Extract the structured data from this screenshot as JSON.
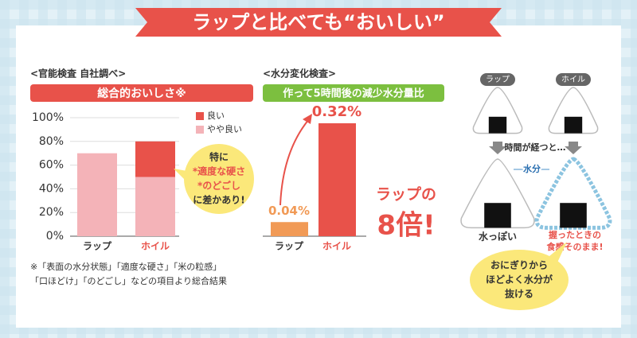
{
  "title": "ラップと比べても“おいしい”",
  "chart_data": [
    {
      "type": "stacked-bar",
      "header": "<官能検査 自社調べ>",
      "subtitle": "総合的おいしさ※",
      "categories": [
        "ラップ",
        "ホイル"
      ],
      "series": [
        {
          "name": "やや良い",
          "color": "#f4b3b8",
          "values": [
            70,
            50
          ]
        },
        {
          "name": "良い",
          "color": "#e8524a",
          "values": [
            0,
            30
          ]
        }
      ],
      "ylim": [
        0,
        100
      ],
      "yticks": [
        {
          "value": 0,
          "label": "0%"
        },
        {
          "value": 20,
          "label": "20%"
        },
        {
          "value": 40,
          "label": "40%"
        },
        {
          "value": 60,
          "label": "60%"
        },
        {
          "value": 80,
          "label": "80%"
        },
        {
          "value": 100,
          "label": "100%"
        }
      ],
      "grid": true,
      "annotation": [
        "特に",
        "*適度な硬さ",
        "*のどごし",
        "に差かあり!"
      ],
      "footnote": [
        "※「表面の水分状態」「適度な硬さ」「米の粒感」",
        "「口ほどけ」「のどごし」などの項目より総合結果"
      ]
    },
    {
      "type": "bar",
      "header": "<水分変化検査>",
      "subtitle": "作って5時間後の減少水分量比",
      "categories": [
        "ラップ",
        "ホイル"
      ],
      "values": [
        0.04,
        0.32
      ],
      "value_labels": [
        "0.04%",
        "0.32%"
      ],
      "colors": [
        "#f19a56",
        "#e8524a"
      ],
      "callout": [
        "ラップの",
        "8倍!"
      ]
    }
  ],
  "diagram": {
    "labels": [
      "ラップ",
      "ホイル"
    ],
    "step": "時間が経つと…",
    "flow": "水分",
    "result_left": "水っぽい",
    "result_right": [
      "握ったときの",
      "食感そのまま!"
    ],
    "bubble": [
      "おにぎりから",
      "ほどよく水分が",
      "抜ける"
    ]
  }
}
